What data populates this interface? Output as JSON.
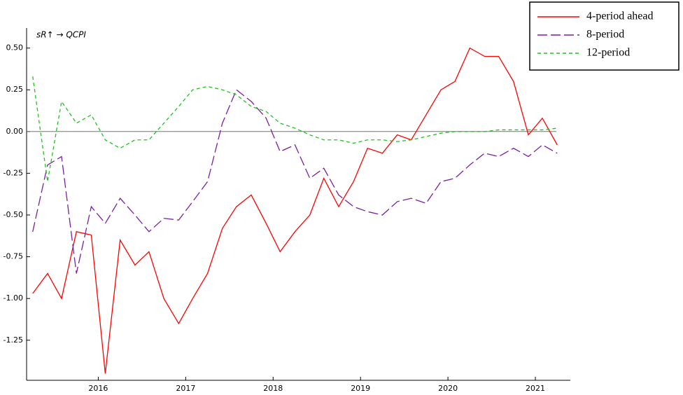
{
  "chart_data": {
    "type": "line",
    "annotation": "sR↑ → QCPI",
    "x": [
      2015.25,
      2015.42,
      2015.58,
      2015.75,
      2015.92,
      2016.08,
      2016.25,
      2016.42,
      2016.58,
      2016.75,
      2016.92,
      2017.08,
      2017.25,
      2017.42,
      2017.58,
      2017.75,
      2017.92,
      2018.08,
      2018.25,
      2018.42,
      2018.58,
      2018.75,
      2018.92,
      2019.08,
      2019.25,
      2019.42,
      2019.58,
      2019.75,
      2019.92,
      2020.08,
      2020.25,
      2020.42,
      2020.58,
      2020.75,
      2020.92,
      2021.08,
      2021.25
    ],
    "series": [
      {
        "name": "4-period ahead",
        "color": "#ff0000",
        "dash": "solid",
        "values": [
          -0.97,
          -0.85,
          -1.0,
          -0.6,
          -0.62,
          -1.45,
          -0.65,
          -0.8,
          -0.72,
          -1.0,
          -1.15,
          -1.0,
          -0.85,
          -0.58,
          -0.45,
          -0.38,
          -0.55,
          -0.72,
          -0.6,
          -0.5,
          -0.28,
          -0.45,
          -0.3,
          -0.1,
          -0.13,
          -0.02,
          -0.05,
          0.1,
          0.25,
          0.3,
          0.5,
          0.45,
          0.45,
          0.3,
          -0.02,
          0.08,
          -0.08
        ]
      },
      {
        "name": "8-period",
        "color": "#7a1fa2",
        "dash": "long",
        "values": [
          -0.6,
          -0.2,
          -0.15,
          -0.85,
          -0.45,
          -0.55,
          -0.4,
          -0.5,
          -0.6,
          -0.52,
          -0.53,
          -0.42,
          -0.3,
          0.05,
          0.25,
          0.18,
          0.08,
          -0.12,
          -0.08,
          -0.28,
          -0.22,
          -0.38,
          -0.45,
          -0.48,
          -0.5,
          -0.42,
          -0.4,
          -0.43,
          -0.3,
          -0.28,
          -0.2,
          -0.13,
          -0.15,
          -0.1,
          -0.15,
          -0.08,
          -0.13
        ]
      },
      {
        "name": "12-period",
        "color": "#22c022",
        "dash": "short",
        "values": [
          0.33,
          -0.3,
          0.18,
          0.05,
          0.1,
          -0.05,
          -0.1,
          -0.05,
          -0.05,
          0.05,
          0.15,
          0.25,
          0.27,
          0.25,
          0.22,
          0.15,
          0.12,
          0.05,
          0.02,
          -0.02,
          -0.05,
          -0.05,
          -0.07,
          -0.05,
          -0.05,
          -0.06,
          -0.05,
          -0.03,
          -0.01,
          0,
          0,
          0,
          0.01,
          0.01,
          0.01,
          0.01,
          0.02
        ]
      }
    ],
    "xlim": [
      2015.18,
      2021.4
    ],
    "xticks": [
      2016,
      2017,
      2018,
      2019,
      2020,
      2021
    ],
    "ylim": [
      -1.49,
      0.62
    ],
    "yticks": [
      {
        "value": 0.5,
        "label": "0.50"
      },
      0.25,
      {
        "value": 0,
        "label": "0.00"
      },
      -0.25,
      {
        "value": -0.5,
        "label": "-0.50"
      },
      -0.75,
      {
        "value": -1,
        "label": "-1.00"
      },
      -1.25
    ],
    "zero_line": true,
    "legend": "top-right"
  }
}
